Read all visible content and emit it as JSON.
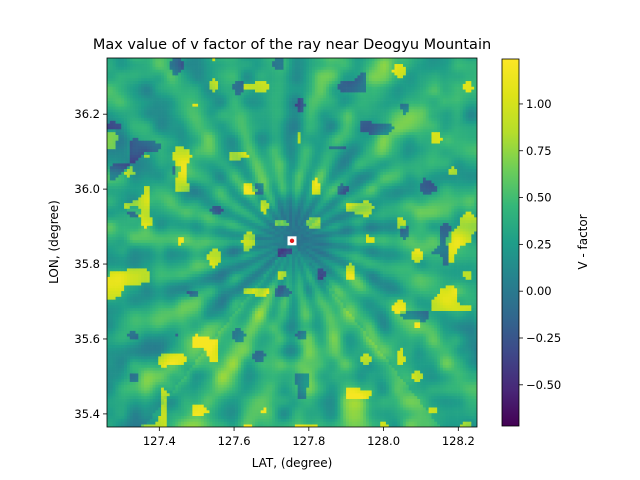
{
  "chart_data": {
    "type": "heatmap",
    "title": "Max value of v factor of the ray near Deogyu Mountain",
    "xlabel": "LAT, (degree)",
    "ylabel": "LON, (degree)",
    "xlim": [
      127.26,
      128.25
    ],
    "ylim": [
      35.365,
      36.35
    ],
    "x_ticks": [
      127.4,
      127.6,
      127.8,
      128.0,
      128.2
    ],
    "x_tick_labels": [
      "127.4",
      "127.6",
      "127.8",
      "128.0",
      "128.2"
    ],
    "y_ticks": [
      35.4,
      35.6,
      35.8,
      36.0,
      36.2
    ],
    "y_tick_labels": [
      "35.4",
      "35.6",
      "35.8",
      "36.0",
      "36.2"
    ],
    "grid": false,
    "colormap": "viridis",
    "colorbar": {
      "label": "V - factor",
      "range": [
        -0.72,
        1.24
      ],
      "ticks": [
        -0.5,
        -0.25,
        0.0,
        0.25,
        0.5,
        0.75,
        1.0
      ],
      "tick_labels": [
        "−0.50",
        "−0.25",
        "0.00",
        "0.25",
        "0.50",
        "0.75",
        "1.00"
      ]
    },
    "grid_resolution": [
      130,
      130
    ],
    "observer_marker": {
      "x": 127.755,
      "y": 35.862,
      "color": "#e41a1c"
    },
    "field_estimate": {
      "background_mean": 0.35,
      "center_dark_region_value": -0.2,
      "south_bright_fan_value": 0.55,
      "max_observed": 1.2,
      "min_observed": -0.7
    }
  }
}
